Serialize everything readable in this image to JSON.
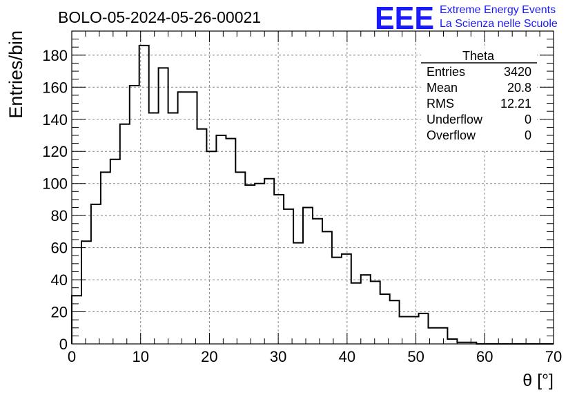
{
  "header": {
    "run_title": "BOLO-05-2024-05-26-00021",
    "logo_text": "EEE",
    "project_line1": "Extreme Energy Events",
    "project_line2": "La Scienza nelle Scuole",
    "accent_color": "#1a1aff"
  },
  "stats_box": {
    "title": "Theta",
    "rows": [
      {
        "label": "Entries",
        "value": "3420"
      },
      {
        "label": "Mean",
        "value": "20.8"
      },
      {
        "label": "RMS",
        "value": "12.21"
      },
      {
        "label": "Underflow",
        "value": "0"
      },
      {
        "label": "Overflow",
        "value": "0"
      }
    ]
  },
  "chart_data": {
    "type": "histogram",
    "title": "BOLO-05-2024-05-26-00021",
    "xlabel": "θ [°]",
    "ylabel": "Entries/bin",
    "xlim": [
      0,
      70
    ],
    "ylim": [
      0,
      195
    ],
    "grid": true,
    "bin_width": 1.4,
    "x_ticks": [
      0,
      10,
      20,
      30,
      40,
      50,
      60,
      70
    ],
    "y_ticks": [
      0,
      20,
      40,
      60,
      80,
      100,
      120,
      140,
      160,
      180
    ],
    "values": [
      30,
      64,
      87,
      107,
      115,
      137,
      161,
      186,
      144,
      172,
      144,
      157,
      157,
      134,
      120,
      130,
      128,
      107,
      99,
      100,
      103,
      93,
      84,
      63,
      85,
      78,
      70,
      54,
      56,
      38,
      43,
      39,
      31,
      27,
      17,
      17,
      19,
      10,
      10,
      3,
      1,
      1,
      0,
      0,
      0,
      0,
      0,
      0,
      0,
      0
    ],
    "line_color": "#000000"
  }
}
